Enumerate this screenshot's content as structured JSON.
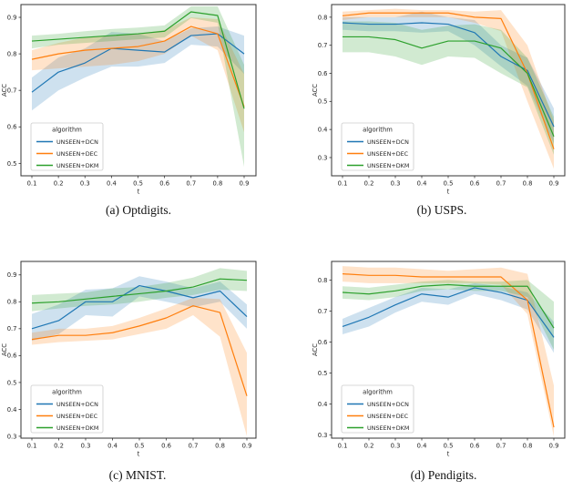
{
  "figure": {
    "background": "#ffffff",
    "axis_color": "#333333",
    "legend_title": "algorithm",
    "series_colors": {
      "UNSEEN+DCN": "#1f77b4",
      "UNSEEN+DEC": "#ff7f0e",
      "UNSEEN+DKM": "#2ca02c"
    }
  },
  "chart_data": [
    {
      "type": "line",
      "name": "Optdigits",
      "caption": "(a) Optdigits.",
      "xlabel": "t",
      "ylabel": "ACC",
      "legend_title": "algorithm",
      "legend_position": "lower left",
      "x": [
        0.1,
        0.2,
        0.3,
        0.4,
        0.5,
        0.6,
        0.7,
        0.8,
        0.9
      ],
      "yticks": [
        0.5,
        0.6,
        0.7,
        0.8,
        0.9
      ],
      "ylim": [
        0.466,
        0.935
      ],
      "grid": false,
      "series": [
        {
          "name": "UNSEEN+DCN",
          "color": "#1f77b4",
          "values": [
            0.695,
            0.75,
            0.775,
            0.815,
            0.81,
            0.805,
            0.85,
            0.855,
            0.8
          ],
          "lower": [
            0.645,
            0.7,
            0.735,
            0.765,
            0.765,
            0.775,
            0.825,
            0.82,
            0.745
          ],
          "upper": [
            0.735,
            0.79,
            0.815,
            0.86,
            0.855,
            0.835,
            0.87,
            0.875,
            0.85
          ]
        },
        {
          "name": "UNSEEN+DEC",
          "color": "#ff7f0e",
          "values": [
            0.785,
            0.8,
            0.81,
            0.815,
            0.82,
            0.835,
            0.875,
            0.855,
            0.655
          ],
          "lower": [
            0.755,
            0.76,
            0.765,
            0.77,
            0.78,
            0.8,
            0.85,
            0.81,
            0.585
          ],
          "upper": [
            0.81,
            0.83,
            0.845,
            0.85,
            0.855,
            0.865,
            0.9,
            0.895,
            0.745
          ]
        },
        {
          "name": "UNSEEN+DKM",
          "color": "#2ca02c",
          "values": [
            0.835,
            0.84,
            0.845,
            0.85,
            0.855,
            0.862,
            0.915,
            0.905,
            0.65
          ],
          "lower": [
            0.815,
            0.825,
            0.83,
            0.835,
            0.84,
            0.845,
            0.898,
            0.885,
            0.49
          ],
          "upper": [
            0.85,
            0.855,
            0.862,
            0.868,
            0.872,
            0.878,
            0.93,
            0.93,
            0.77
          ]
        }
      ]
    },
    {
      "type": "line",
      "name": "USPS",
      "caption": "(b) USPS.",
      "xlabel": "t",
      "ylabel": "ACC",
      "legend_title": "algorithm",
      "legend_position": "lower left",
      "x": [
        0.1,
        0.2,
        0.3,
        0.4,
        0.5,
        0.6,
        0.7,
        0.8,
        0.9
      ],
      "yticks": [
        0.3,
        0.4,
        0.5,
        0.6,
        0.7,
        0.8
      ],
      "ylim": [
        0.235,
        0.845
      ],
      "grid": false,
      "series": [
        {
          "name": "UNSEEN+DCN",
          "color": "#1f77b4",
          "values": [
            0.78,
            0.775,
            0.775,
            0.78,
            0.775,
            0.745,
            0.66,
            0.61,
            0.41
          ],
          "lower": [
            0.755,
            0.75,
            0.75,
            0.745,
            0.75,
            0.7,
            0.625,
            0.555,
            0.35
          ],
          "upper": [
            0.8,
            0.8,
            0.8,
            0.82,
            0.8,
            0.79,
            0.7,
            0.655,
            0.475
          ]
        },
        {
          "name": "UNSEEN+DEC",
          "color": "#ff7f0e",
          "values": [
            0.805,
            0.815,
            0.815,
            0.815,
            0.815,
            0.8,
            0.795,
            0.6,
            0.33
          ],
          "lower": [
            0.79,
            0.8,
            0.8,
            0.8,
            0.8,
            0.78,
            0.75,
            0.5,
            0.26
          ],
          "upper": [
            0.82,
            0.825,
            0.83,
            0.825,
            0.825,
            0.82,
            0.825,
            0.7,
            0.43
          ]
        },
        {
          "name": "UNSEEN+DKM",
          "color": "#2ca02c",
          "values": [
            0.73,
            0.73,
            0.72,
            0.69,
            0.715,
            0.715,
            0.69,
            0.6,
            0.375
          ],
          "lower": [
            0.675,
            0.675,
            0.66,
            0.63,
            0.66,
            0.655,
            0.6,
            0.55,
            0.31
          ],
          "upper": [
            0.785,
            0.785,
            0.78,
            0.755,
            0.77,
            0.775,
            0.755,
            0.655,
            0.445
          ]
        }
      ]
    },
    {
      "type": "line",
      "name": "MNIST",
      "caption": "(c) MNIST.",
      "xlabel": "t",
      "ylabel": "ACC",
      "legend_title": "algorithm",
      "legend_position": "lower left",
      "x": [
        0.1,
        0.2,
        0.3,
        0.4,
        0.5,
        0.6,
        0.7,
        0.8,
        0.9
      ],
      "yticks": [
        0.3,
        0.4,
        0.5,
        0.6,
        0.7,
        0.8,
        0.9
      ],
      "ylim": [
        0.293,
        0.95
      ],
      "grid": false,
      "series": [
        {
          "name": "UNSEEN+DCN",
          "color": "#1f77b4",
          "values": [
            0.7,
            0.73,
            0.8,
            0.8,
            0.86,
            0.84,
            0.815,
            0.84,
            0.745
          ],
          "lower": [
            0.655,
            0.68,
            0.75,
            0.745,
            0.82,
            0.8,
            0.78,
            0.8,
            0.7
          ],
          "upper": [
            0.755,
            0.79,
            0.845,
            0.85,
            0.895,
            0.875,
            0.85,
            0.875,
            0.79
          ]
        },
        {
          "name": "UNSEEN+DEC",
          "color": "#ff7f0e",
          "values": [
            0.66,
            0.675,
            0.675,
            0.685,
            0.71,
            0.74,
            0.785,
            0.76,
            0.45
          ],
          "lower": [
            0.64,
            0.65,
            0.655,
            0.66,
            0.68,
            0.7,
            0.75,
            0.67,
            0.3
          ],
          "upper": [
            0.685,
            0.7,
            0.7,
            0.71,
            0.74,
            0.775,
            0.815,
            0.81,
            0.61
          ]
        },
        {
          "name": "UNSEEN+DKM",
          "color": "#2ca02c",
          "values": [
            0.795,
            0.8,
            0.81,
            0.82,
            0.83,
            0.84,
            0.855,
            0.885,
            0.88
          ],
          "lower": [
            0.765,
            0.775,
            0.785,
            0.79,
            0.8,
            0.815,
            0.825,
            0.845,
            0.84
          ],
          "upper": [
            0.825,
            0.83,
            0.835,
            0.85,
            0.855,
            0.87,
            0.89,
            0.925,
            0.915
          ]
        }
      ]
    },
    {
      "type": "line",
      "name": "Pendigits",
      "caption": "(d) Pendigits.",
      "xlabel": "t",
      "ylabel": "ACC",
      "legend_title": "algorithm",
      "legend_position": "lower left",
      "x": [
        0.1,
        0.2,
        0.3,
        0.4,
        0.5,
        0.6,
        0.7,
        0.8,
        0.9
      ],
      "yticks": [
        0.3,
        0.4,
        0.5,
        0.6,
        0.7,
        0.8
      ],
      "ylim": [
        0.29,
        0.86
      ],
      "grid": false,
      "series": [
        {
          "name": "UNSEEN+DCN",
          "color": "#1f77b4",
          "values": [
            0.65,
            0.68,
            0.72,
            0.755,
            0.745,
            0.775,
            0.76,
            0.735,
            0.615
          ],
          "lower": [
            0.625,
            0.65,
            0.695,
            0.73,
            0.72,
            0.755,
            0.735,
            0.705,
            0.565
          ],
          "upper": [
            0.675,
            0.71,
            0.745,
            0.775,
            0.77,
            0.79,
            0.78,
            0.76,
            0.665
          ]
        },
        {
          "name": "UNSEEN+DEC",
          "color": "#ff7f0e",
          "values": [
            0.82,
            0.815,
            0.815,
            0.81,
            0.81,
            0.81,
            0.81,
            0.735,
            0.325
          ],
          "lower": [
            0.795,
            0.79,
            0.79,
            0.79,
            0.79,
            0.79,
            0.785,
            0.69,
            0.295
          ],
          "upper": [
            0.845,
            0.84,
            0.84,
            0.835,
            0.83,
            0.835,
            0.84,
            0.82,
            0.46
          ]
        },
        {
          "name": "UNSEEN+DKM",
          "color": "#2ca02c",
          "values": [
            0.76,
            0.755,
            0.765,
            0.78,
            0.785,
            0.78,
            0.78,
            0.78,
            0.645
          ],
          "lower": [
            0.74,
            0.735,
            0.745,
            0.765,
            0.77,
            0.765,
            0.765,
            0.745,
            0.575
          ],
          "upper": [
            0.78,
            0.775,
            0.785,
            0.795,
            0.8,
            0.795,
            0.795,
            0.8,
            0.73
          ]
        }
      ]
    }
  ]
}
